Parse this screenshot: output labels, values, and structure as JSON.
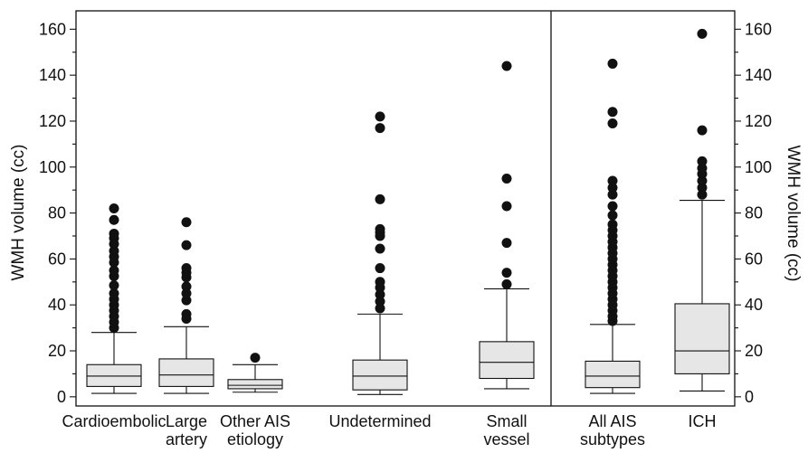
{
  "chart_data": {
    "type": "box",
    "ylabel_left": "WMH volume (cc)",
    "ylabel_right": "WMH volume (cc)",
    "ylim": [
      -4,
      168
    ],
    "yticks": [
      0,
      20,
      40,
      60,
      80,
      100,
      120,
      140,
      160
    ],
    "grid": false,
    "colors": {
      "box_fill": "#e6e6e6",
      "stroke": "#111111",
      "outlier": "#111111"
    },
    "panels": [
      {
        "name": "left",
        "categories": [
          {
            "label_lines": [
              "Cardioembolic"
            ],
            "whisker_low": 1.5,
            "q1": 4.5,
            "median": 9,
            "q3": 14,
            "whisker_high": 28,
            "outliers": [
              30,
              32.5,
              35,
              37.5,
              40,
              42.5,
              45,
              48.5,
              52.5,
              55,
              58.5,
              61,
              63.5,
              66.5,
              69,
              71,
              77,
              82
            ]
          },
          {
            "label_lines": [
              "Large",
              "artery"
            ],
            "whisker_low": 1.5,
            "q1": 4.5,
            "median": 9.5,
            "q3": 16.5,
            "whisker_high": 30.5,
            "outliers": [
              34,
              36,
              42,
              45,
              48,
              52,
              54,
              56,
              66,
              76
            ]
          },
          {
            "label_lines": [
              "Other AIS",
              "etiology"
            ],
            "whisker_low": 2,
            "q1": 3.5,
            "median": 5,
            "q3": 7.5,
            "whisker_high": 14,
            "outliers": [
              17
            ]
          },
          {
            "label_lines": [
              "Undetermined"
            ],
            "whisker_low": 1,
            "q1": 3,
            "median": 9,
            "q3": 16,
            "whisker_high": 36,
            "outliers": [
              38.5,
              41.5,
              44.5,
              47.5,
              50,
              56,
              64.5,
              70,
              71.5,
              73,
              86,
              117,
              122
            ]
          },
          {
            "label_lines": [
              "Small",
              "vessel"
            ],
            "whisker_low": 3.5,
            "q1": 8,
            "median": 15,
            "q3": 24,
            "whisker_high": 47,
            "outliers": [
              49,
              54,
              67,
              83,
              95,
              144
            ]
          }
        ]
      },
      {
        "name": "right",
        "categories": [
          {
            "label_lines": [
              "All AIS",
              "subtypes"
            ],
            "whisker_low": 1.5,
            "q1": 4,
            "median": 9,
            "q3": 15.5,
            "whisker_high": 31.5,
            "outliers": [
              33,
              35,
              37.5,
              40,
              42.5,
              45,
              47.5,
              50,
              52.5,
              55,
              57.5,
              60,
              62.5,
              65,
              67.5,
              70,
              72.5,
              75,
              79,
              83,
              88,
              91,
              94,
              119,
              124,
              145
            ]
          },
          {
            "label_lines": [
              "ICH"
            ],
            "whisker_low": 2.5,
            "q1": 10,
            "median": 20,
            "q3": 40.5,
            "whisker_high": 85.5,
            "outliers": [
              88,
              91,
              94,
              97,
              99.5,
              102.5,
              116,
              158
            ]
          }
        ]
      }
    ]
  }
}
